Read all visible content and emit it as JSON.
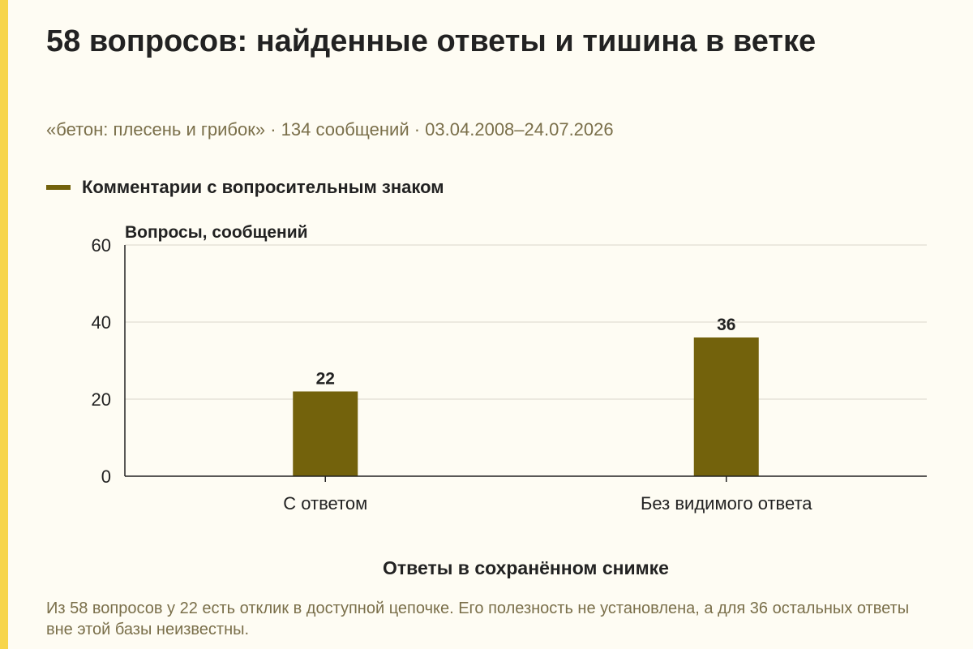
{
  "title": "58 вопросов: найденные ответы и тишина в ветке",
  "subtitle": "«бетон: плесень и грибок» · 134 сообщений · 03.04.2008–24.07.2026",
  "colors": {
    "accent_strip": "#F7D54A",
    "bar": "#73620C",
    "background": "#FEFCF3",
    "muted_text": "#7A6F4A",
    "grid": "#D9D6CB"
  },
  "chart_data": {
    "type": "bar",
    "title": "",
    "ylabel": "Вопросы, сообщений",
    "xlabel": "Ответы в сохранённом снимке",
    "categories": [
      "С ответом",
      "Без видимого ответа"
    ],
    "series": [
      {
        "name": "Комментарии с вопросительным знаком",
        "values": [
          22,
          36
        ]
      }
    ],
    "ylim": [
      0,
      60
    ],
    "yticks": [
      0,
      20,
      40,
      60
    ],
    "grid": true,
    "legend": "top-left"
  },
  "footnote": "Из 58 вопросов у 22 есть отклик в доступной цепочке. Его полезность не установлена, а для 36 остальных ответы вне этой базы неизвестны."
}
